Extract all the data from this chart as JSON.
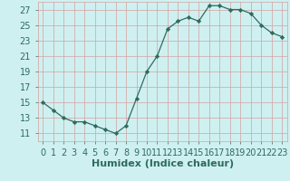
{
  "x": [
    0,
    1,
    2,
    3,
    4,
    5,
    6,
    7,
    8,
    9,
    10,
    11,
    12,
    13,
    14,
    15,
    16,
    17,
    18,
    19,
    20,
    21,
    22,
    23
  ],
  "y": [
    15,
    14,
    13,
    12.5,
    12.5,
    12,
    11.5,
    11,
    12,
    15.5,
    19,
    21,
    24.5,
    25.5,
    26,
    25.5,
    27.5,
    27.5,
    27,
    27,
    26.5,
    25,
    24,
    23.5
  ],
  "xlabel": "Humidex (Indice chaleur)",
  "xlim": [
    -0.5,
    23.5
  ],
  "ylim": [
    10,
    28
  ],
  "yticks": [
    11,
    13,
    15,
    17,
    19,
    21,
    23,
    25,
    27
  ],
  "xticks": [
    0,
    1,
    2,
    3,
    4,
    5,
    6,
    7,
    8,
    9,
    10,
    11,
    12,
    13,
    14,
    15,
    16,
    17,
    18,
    19,
    20,
    21,
    22,
    23
  ],
  "xtick_labels": [
    "0",
    "1",
    "2",
    "3",
    "4",
    "5",
    "6",
    "7",
    "8",
    "9",
    "10",
    "11",
    "12",
    "13",
    "14",
    "15",
    "16",
    "17",
    "18",
    "19",
    "20",
    "21",
    "22",
    "23"
  ],
  "line_color": "#2e6b5e",
  "marker": "D",
  "marker_size": 2.2,
  "bg_color": "#cff0f0",
  "grid_color": "#d4a0a0",
  "xlabel_fontsize": 8,
  "tick_fontsize": 7
}
